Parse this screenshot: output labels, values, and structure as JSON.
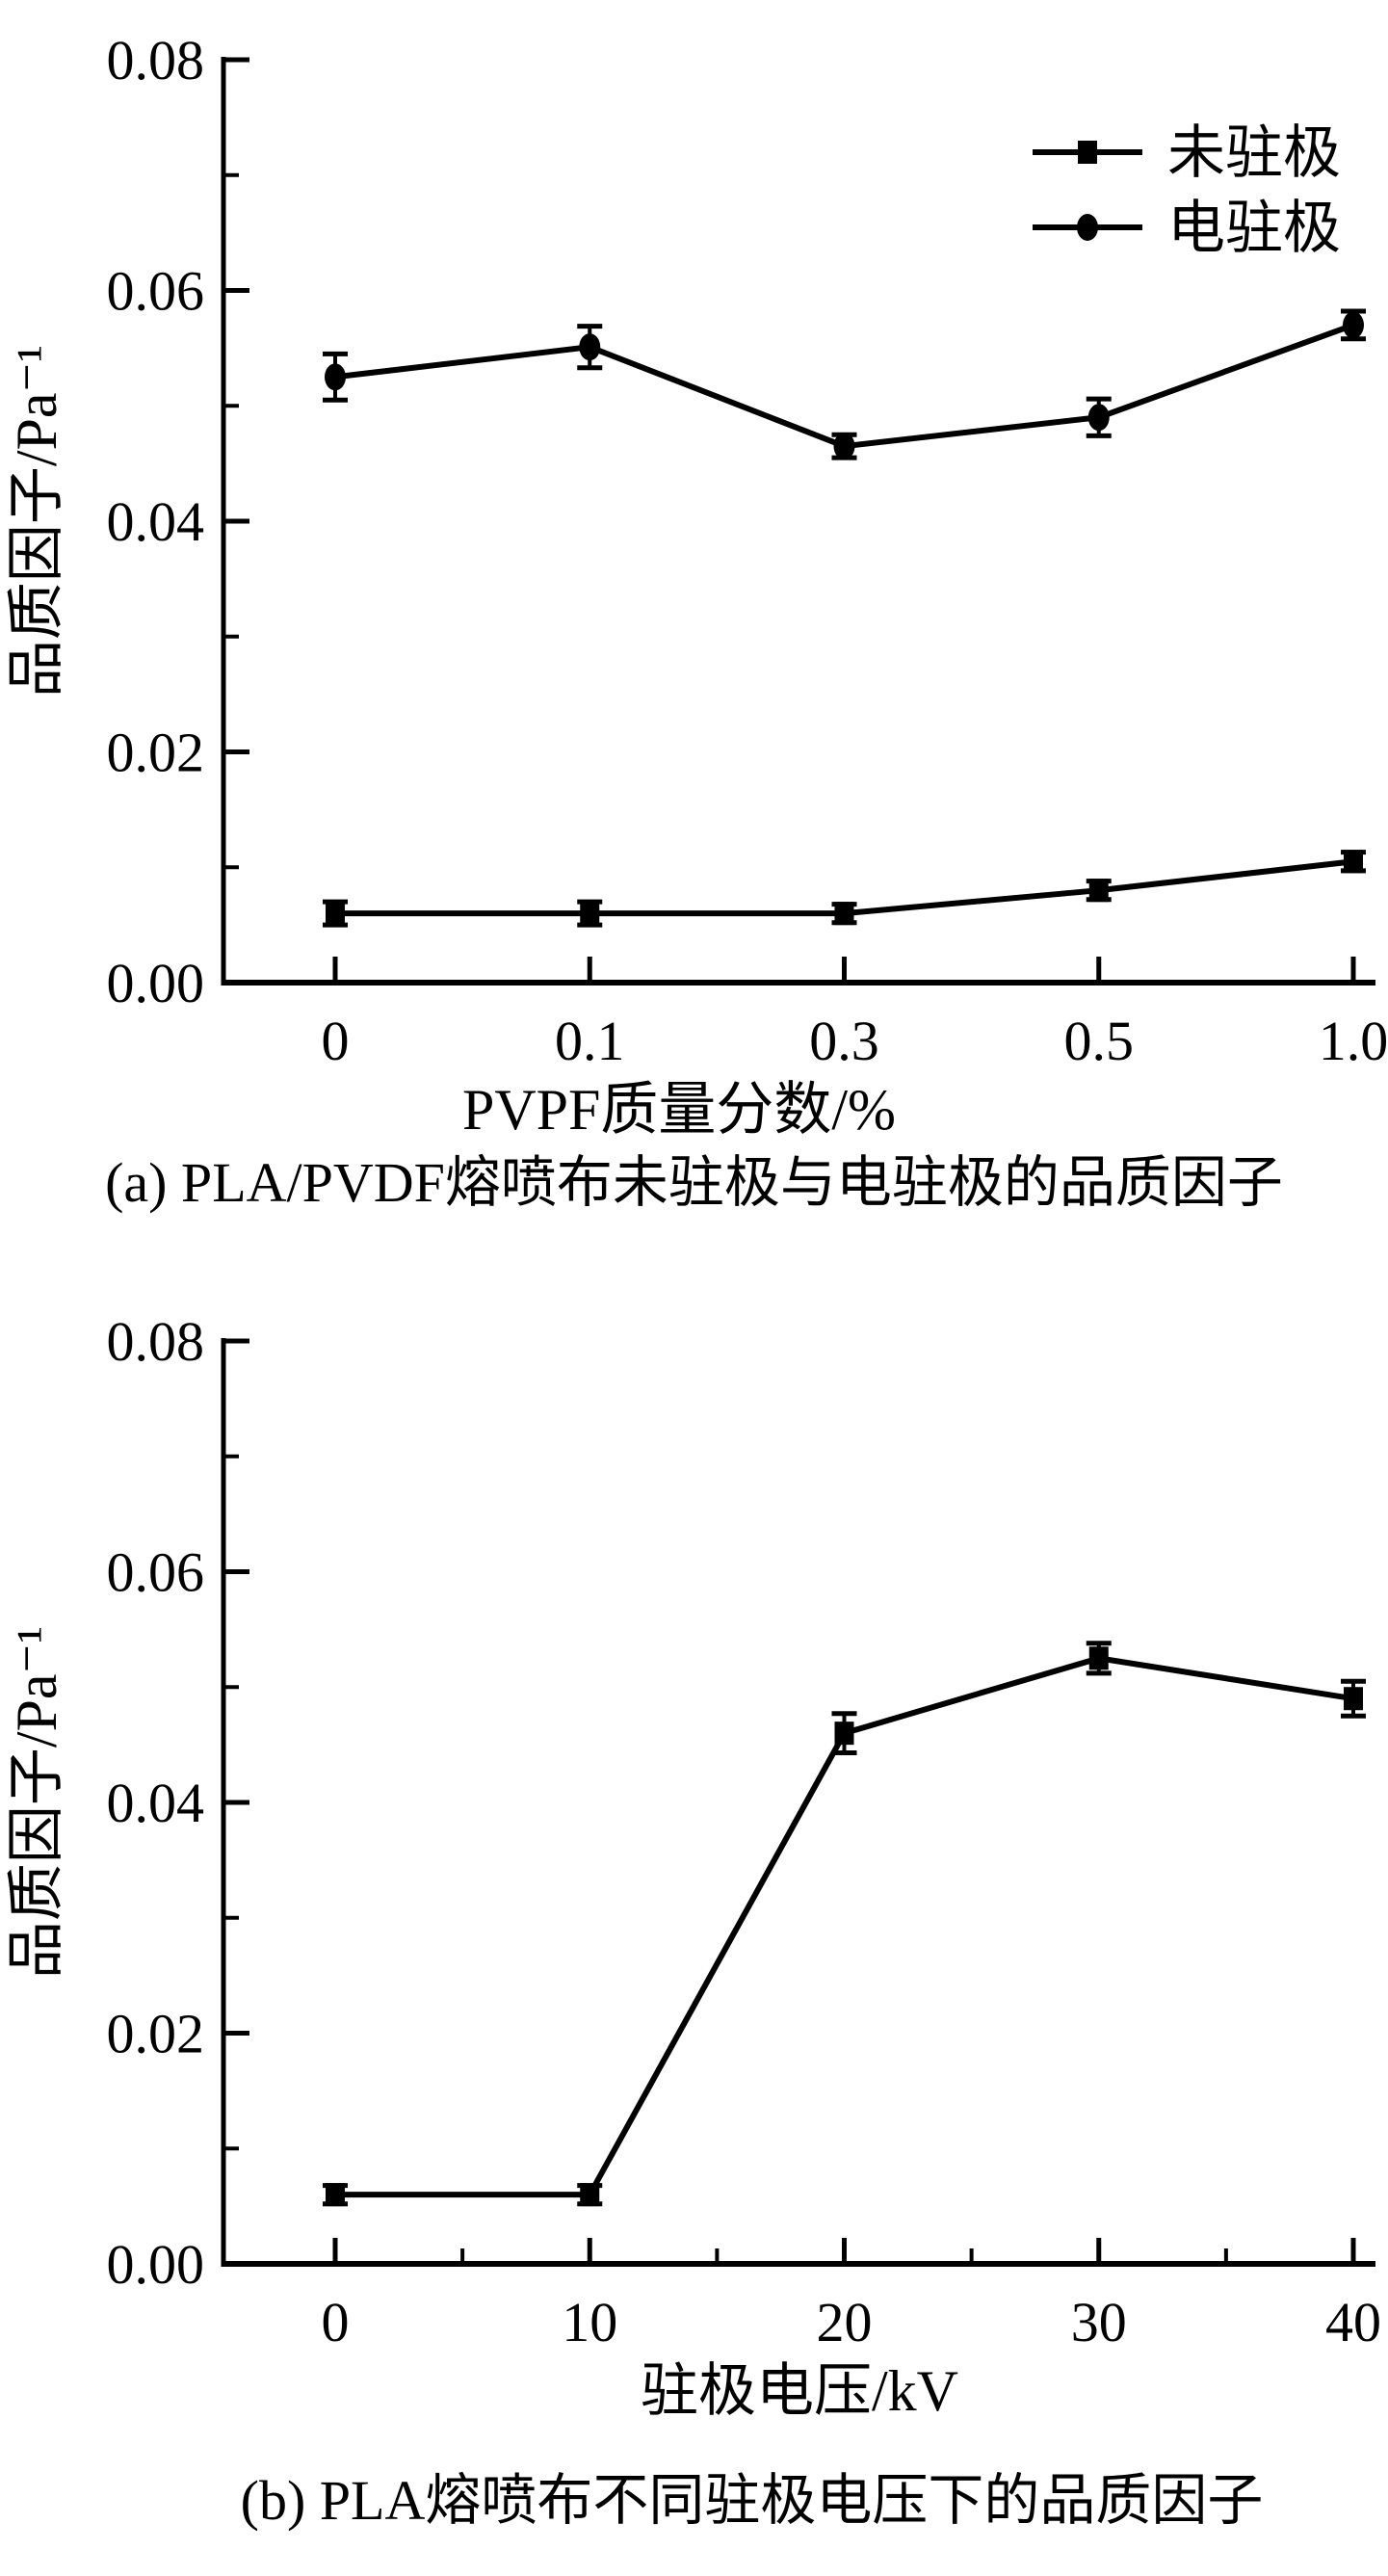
{
  "page": {
    "background": "#ffffff",
    "ink": "#000000"
  },
  "chart_data": [
    {
      "type": "line",
      "panel": "a",
      "caption": "(a) PLA/PVDF熔喷布未驻极与电驻极的品质因子",
      "xlabel": "PVPF质量分数/%",
      "ylabel": "品质因子/Pa⁻¹",
      "categories": [
        "0",
        "0.1",
        "0.3",
        "0.5",
        "1.0"
      ],
      "ylim": [
        0,
        0.08
      ],
      "y_tick_values": [
        0,
        0.02,
        0.04,
        0.06,
        0.08
      ],
      "y_tick_labels": [
        "0.00",
        "0.02",
        "0.04",
        "0.06",
        "0.08"
      ],
      "y_minor_step": 0.01,
      "x_minor_ticks": false,
      "grid": false,
      "legend": {
        "position": "top-right",
        "entries": [
          {
            "label": "未驻极",
            "marker": "square"
          },
          {
            "label": "电驻极",
            "marker": "circle"
          }
        ]
      },
      "series": [
        {
          "name": "未驻极",
          "marker": "square",
          "color": "#000000",
          "values": [
            0.006,
            0.006,
            0.006,
            0.008,
            0.0105
          ],
          "errors": [
            0.001,
            0.001,
            0.0008,
            0.0008,
            0.0008
          ]
        },
        {
          "name": "电驻极",
          "marker": "circle",
          "color": "#000000",
          "values": [
            0.0525,
            0.0551,
            0.0465,
            0.049,
            0.057
          ],
          "errors": [
            0.002,
            0.0018,
            0.001,
            0.0016,
            0.0012
          ]
        }
      ]
    },
    {
      "type": "line",
      "panel": "b",
      "caption": "(b) PLA熔喷布不同驻极电压下的品质因子",
      "xlabel": "驻极电压/kV",
      "ylabel": "品质因子/Pa⁻¹",
      "categories": [
        "0",
        "10",
        "20",
        "30",
        "40"
      ],
      "ylim": [
        0,
        0.08
      ],
      "y_tick_values": [
        0,
        0.02,
        0.04,
        0.06,
        0.08
      ],
      "y_tick_labels": [
        "0.00",
        "0.02",
        "0.04",
        "0.06",
        "0.08"
      ],
      "y_minor_step": 0.01,
      "x_minor_ticks": true,
      "grid": false,
      "legend": null,
      "series": [
        {
          "name": "",
          "marker": "square",
          "color": "#000000",
          "values": [
            0.006,
            0.006,
            0.046,
            0.0525,
            0.049
          ],
          "errors": [
            0.0008,
            0.0008,
            0.0017,
            0.0013,
            0.0015
          ]
        }
      ]
    }
  ]
}
